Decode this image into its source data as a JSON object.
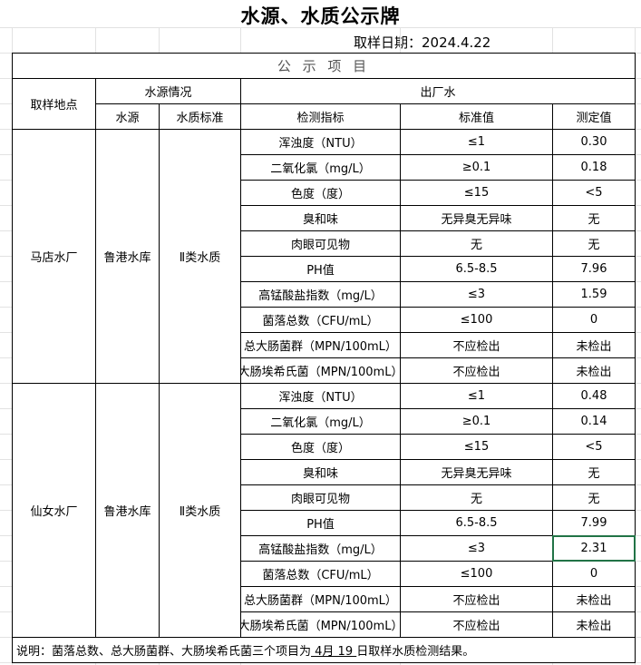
{
  "title": "水源、水质公示牌",
  "date": "取样日期：2024.4.22",
  "table": {
    "banner": "公 示 项 目",
    "header": {
      "site": "取样地点",
      "source_group": "水源情况",
      "outlet_group": "出厂水",
      "source": "水源",
      "standard": "水质标准",
      "indicator": "检测指标",
      "limit": "标准值",
      "measured": "测定值"
    },
    "sites": [
      {
        "name": "马店水厂",
        "source": "鲁港水库",
        "standard": "Ⅱ类水质",
        "rows": [
          [
            "浑浊度（NTU）",
            "≤1",
            "0.30"
          ],
          [
            "二氧化氯（mg/L）",
            "≥0.1",
            "0.18"
          ],
          [
            "色度（度）",
            "≤15",
            "<5"
          ],
          [
            "臭和味",
            "无异臭无异味",
            "无"
          ],
          [
            "肉眼可见物",
            "无",
            "无"
          ],
          [
            "PH值",
            "6.5-8.5",
            "7.96"
          ],
          [
            "高锰酸盐指数（mg/L）",
            "≤3",
            "1.59"
          ],
          [
            "菌落总数（CFU/mL）",
            "≤100",
            "0"
          ],
          [
            "总大肠菌群（MPN/100mL）",
            "不应检出",
            "未检出"
          ],
          [
            "大肠埃希氏菌（MPN/100mL）",
            "不应检出",
            "未检出"
          ]
        ]
      },
      {
        "name": "仙女水厂",
        "source": "鲁港水库",
        "standard": "Ⅱ类水质",
        "rows": [
          [
            "浑浊度（NTU）",
            "≤1",
            "0.48"
          ],
          [
            "二氧化氯（mg/L）",
            "≥0.1",
            "0.14"
          ],
          [
            "色度（度）",
            "≤15",
            "<5"
          ],
          [
            "臭和味",
            "无异臭无异味",
            "无"
          ],
          [
            "肉眼可见物",
            "无",
            "无"
          ],
          [
            "PH值",
            "6.5-8.5",
            "7.99"
          ],
          [
            "高锰酸盐指数（mg/L）",
            "≤3",
            "2.31"
          ],
          [
            "菌落总数（CFU/mL）",
            "≤100",
            "0"
          ],
          [
            "总大肠菌群（MPN/100mL）",
            "不应检出",
            "未检出"
          ],
          [
            "大肠埃希氏菌（MPN/100mL）",
            "不应检出",
            "未检出"
          ]
        ]
      }
    ],
    "note": [
      "说明：菌落总数、总大肠菌群、大肠埃希氏菌三个项目为",
      " 4月 19 ",
      "日取样水质检测结果。"
    ]
  }
}
